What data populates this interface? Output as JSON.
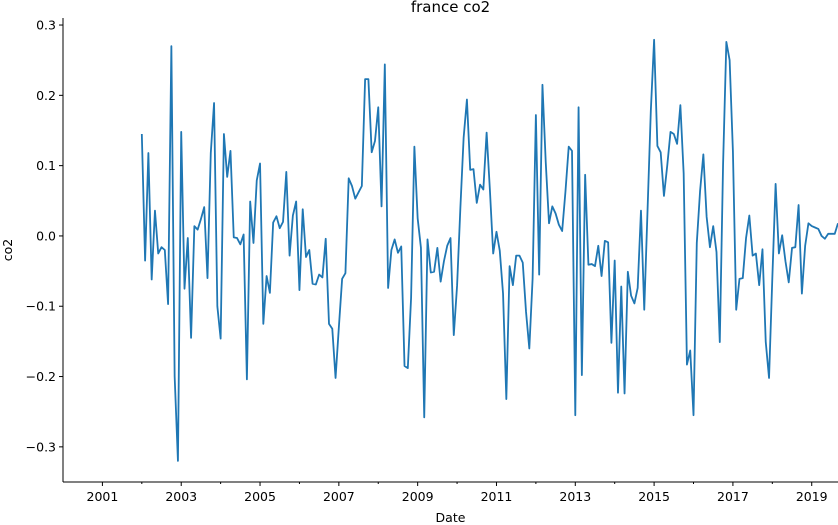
{
  "chart_data": {
    "type": "line",
    "title": "france co2",
    "xlabel": "Date",
    "ylabel": "co2",
    "xlim": [
      "2000-01",
      "2019-09"
    ],
    "ylim": [
      -0.35,
      0.31
    ],
    "x_ticks": [
      "2001",
      "2003",
      "2005",
      "2007",
      "2009",
      "2011",
      "2013",
      "2015",
      "2017",
      "2019"
    ],
    "y_ticks": [
      "0.3",
      "0.2",
      "0.1",
      "0.0",
      "−0.1",
      "−0.2",
      "−0.3"
    ],
    "grid": false,
    "colors": {
      "line": "#1f77b4"
    },
    "series": [
      {
        "x": [
          "2002-01",
          "2002-02",
          "2002-03",
          "2002-04",
          "2002-05",
          "2002-06",
          "2002-07",
          "2002-08",
          "2002-09",
          "2002-10",
          "2002-11",
          "2002-12",
          "2003-01",
          "2003-02",
          "2003-03",
          "2003-04",
          "2003-05",
          "2003-06",
          "2003-07",
          "2003-08",
          "2003-09",
          "2003-10",
          "2003-11",
          "2003-12",
          "2004-01",
          "2004-02",
          "2004-03",
          "2004-04",
          "2004-05",
          "2004-06",
          "2004-07",
          "2004-08",
          "2004-09",
          "2004-10",
          "2004-11",
          "2004-12",
          "2005-01",
          "2005-02",
          "2005-03",
          "2005-04",
          "2005-05",
          "2005-06",
          "2005-07",
          "2005-08",
          "2005-09",
          "2005-10",
          "2005-11",
          "2005-12",
          "2006-01",
          "2006-02",
          "2006-03",
          "2006-04",
          "2006-05",
          "2006-06",
          "2006-07",
          "2006-08",
          "2006-09",
          "2006-10",
          "2006-11",
          "2006-12",
          "2007-01",
          "2007-02",
          "2007-03",
          "2007-04",
          "2007-05",
          "2007-06",
          "2007-07",
          "2007-08",
          "2007-09",
          "2007-10",
          "2007-11",
          "2007-12",
          "2008-01",
          "2008-02",
          "2008-03",
          "2008-04",
          "2008-05",
          "2008-06",
          "2008-07",
          "2008-08",
          "2008-09",
          "2008-10",
          "2008-11",
          "2008-12",
          "2009-01",
          "2009-02",
          "2009-03",
          "2009-04",
          "2009-05",
          "2009-06",
          "2009-07",
          "2009-08",
          "2009-09",
          "2009-10",
          "2009-11",
          "2009-12",
          "2010-01",
          "2010-02",
          "2010-03",
          "2010-04",
          "2010-05",
          "2010-06",
          "2010-07",
          "2010-08",
          "2010-09",
          "2010-10",
          "2010-11",
          "2010-12",
          "2011-01",
          "2011-02",
          "2011-03",
          "2011-04",
          "2011-05",
          "2011-06",
          "2011-07",
          "2011-08",
          "2011-09",
          "2011-10",
          "2011-11",
          "2011-12",
          "2012-01",
          "2012-02",
          "2012-03",
          "2012-04",
          "2012-05",
          "2012-06",
          "2012-07",
          "2012-08",
          "2012-09",
          "2012-10",
          "2012-11",
          "2012-12",
          "2013-01",
          "2013-02",
          "2013-03",
          "2013-04",
          "2013-05",
          "2013-06",
          "2013-07",
          "2013-08",
          "2013-09",
          "2013-10",
          "2013-11",
          "2013-12",
          "2014-01",
          "2014-02",
          "2014-03",
          "2014-04",
          "2014-05",
          "2014-06",
          "2014-07",
          "2014-08",
          "2014-09",
          "2014-10",
          "2014-11",
          "2014-12",
          "2015-01",
          "2015-02",
          "2015-03",
          "2015-04",
          "2015-05",
          "2015-06",
          "2015-07",
          "2015-08",
          "2015-09",
          "2015-10",
          "2015-11",
          "2015-12",
          "2016-01",
          "2016-02",
          "2016-03",
          "2016-04",
          "2016-05",
          "2016-06",
          "2016-07",
          "2016-08",
          "2016-09",
          "2016-10",
          "2016-11",
          "2016-12",
          "2017-01",
          "2017-02",
          "2017-03",
          "2017-04",
          "2017-05",
          "2017-06",
          "2017-07",
          "2017-08",
          "2017-09",
          "2017-10",
          "2017-11",
          "2017-12",
          "2018-01",
          "2018-02",
          "2018-03",
          "2018-04",
          "2018-05",
          "2018-06",
          "2018-07",
          "2018-08",
          "2018-09",
          "2018-10",
          "2018-11",
          "2018-12",
          "2019-01",
          "2019-02",
          "2019-03",
          "2019-04",
          "2019-05",
          "2019-06",
          "2019-07",
          "2019-08",
          "2019-09"
        ],
        "values": [
          0.145,
          -0.035,
          0.118,
          -0.062,
          0.036,
          -0.025,
          -0.016,
          -0.02,
          -0.097,
          0.27,
          -0.2,
          -0.32,
          0.148,
          -0.075,
          -0.003,
          -0.145,
          0.014,
          0.009,
          0.024,
          0.041,
          -0.06,
          0.118,
          0.189,
          -0.1,
          -0.146,
          0.145,
          0.084,
          0.121,
          -0.002,
          -0.003,
          -0.012,
          0.002,
          -0.204,
          0.049,
          -0.01,
          0.079,
          0.103,
          -0.125,
          -0.057,
          -0.081,
          0.019,
          0.028,
          0.011,
          0.02,
          0.091,
          -0.028,
          0.029,
          0.049,
          -0.077,
          0.038,
          -0.03,
          -0.02,
          -0.068,
          -0.069,
          -0.055,
          -0.059,
          -0.004,
          -0.125,
          -0.132,
          -0.202,
          -0.13,
          -0.061,
          -0.053,
          0.082,
          0.071,
          0.053,
          0.062,
          0.071,
          0.223,
          0.223,
          0.119,
          0.135,
          0.183,
          0.042,
          0.244,
          -0.074,
          -0.02,
          -0.005,
          -0.024,
          -0.015,
          -0.185,
          -0.188,
          -0.088,
          0.127,
          0.025,
          -0.017,
          -0.258,
          -0.005,
          -0.052,
          -0.051,
          -0.017,
          -0.065,
          -0.036,
          -0.014,
          -0.003,
          -0.141,
          -0.071,
          0.039,
          0.14,
          0.194,
          0.094,
          0.095,
          0.047,
          0.073,
          0.066,
          0.147,
          0.065,
          -0.025,
          0.006,
          -0.021,
          -0.082,
          -0.232,
          -0.043,
          -0.07,
          -0.028,
          -0.028,
          -0.038,
          -0.108,
          -0.16,
          -0.061,
          0.172,
          -0.055,
          0.215,
          0.105,
          0.018,
          0.042,
          0.032,
          0.016,
          0.007,
          0.063,
          0.127,
          0.121,
          -0.255,
          0.183,
          -0.198,
          0.087,
          -0.041,
          -0.04,
          -0.043,
          -0.014,
          -0.057,
          -0.007,
          -0.009,
          -0.152,
          -0.035,
          -0.223,
          -0.072,
          -0.224,
          -0.051,
          -0.085,
          -0.096,
          -0.074,
          0.036,
          -0.105,
          0.036,
          0.178,
          0.279,
          0.128,
          0.119,
          0.057,
          0.1,
          0.148,
          0.145,
          0.131,
          0.186,
          0.089,
          -0.183,
          -0.163,
          -0.255,
          -0.01,
          0.064,
          0.116,
          0.027,
          -0.016,
          0.014,
          -0.023,
          -0.151,
          0.101,
          0.276,
          0.25,
          0.12,
          -0.105,
          -0.061,
          -0.06,
          -0.003,
          0.029,
          -0.028,
          -0.025,
          -0.07,
          -0.019,
          -0.151,
          -0.202,
          -0.06,
          0.074,
          -0.025,
          0.001,
          -0.036,
          -0.066,
          -0.017,
          -0.016,
          0.044,
          -0.082,
          -0.014,
          0.018,
          0.014,
          0.012,
          0.01,
          0.0,
          -0.004,
          0.003,
          0.003,
          0.003,
          0.018
        ]
      }
    ]
  }
}
